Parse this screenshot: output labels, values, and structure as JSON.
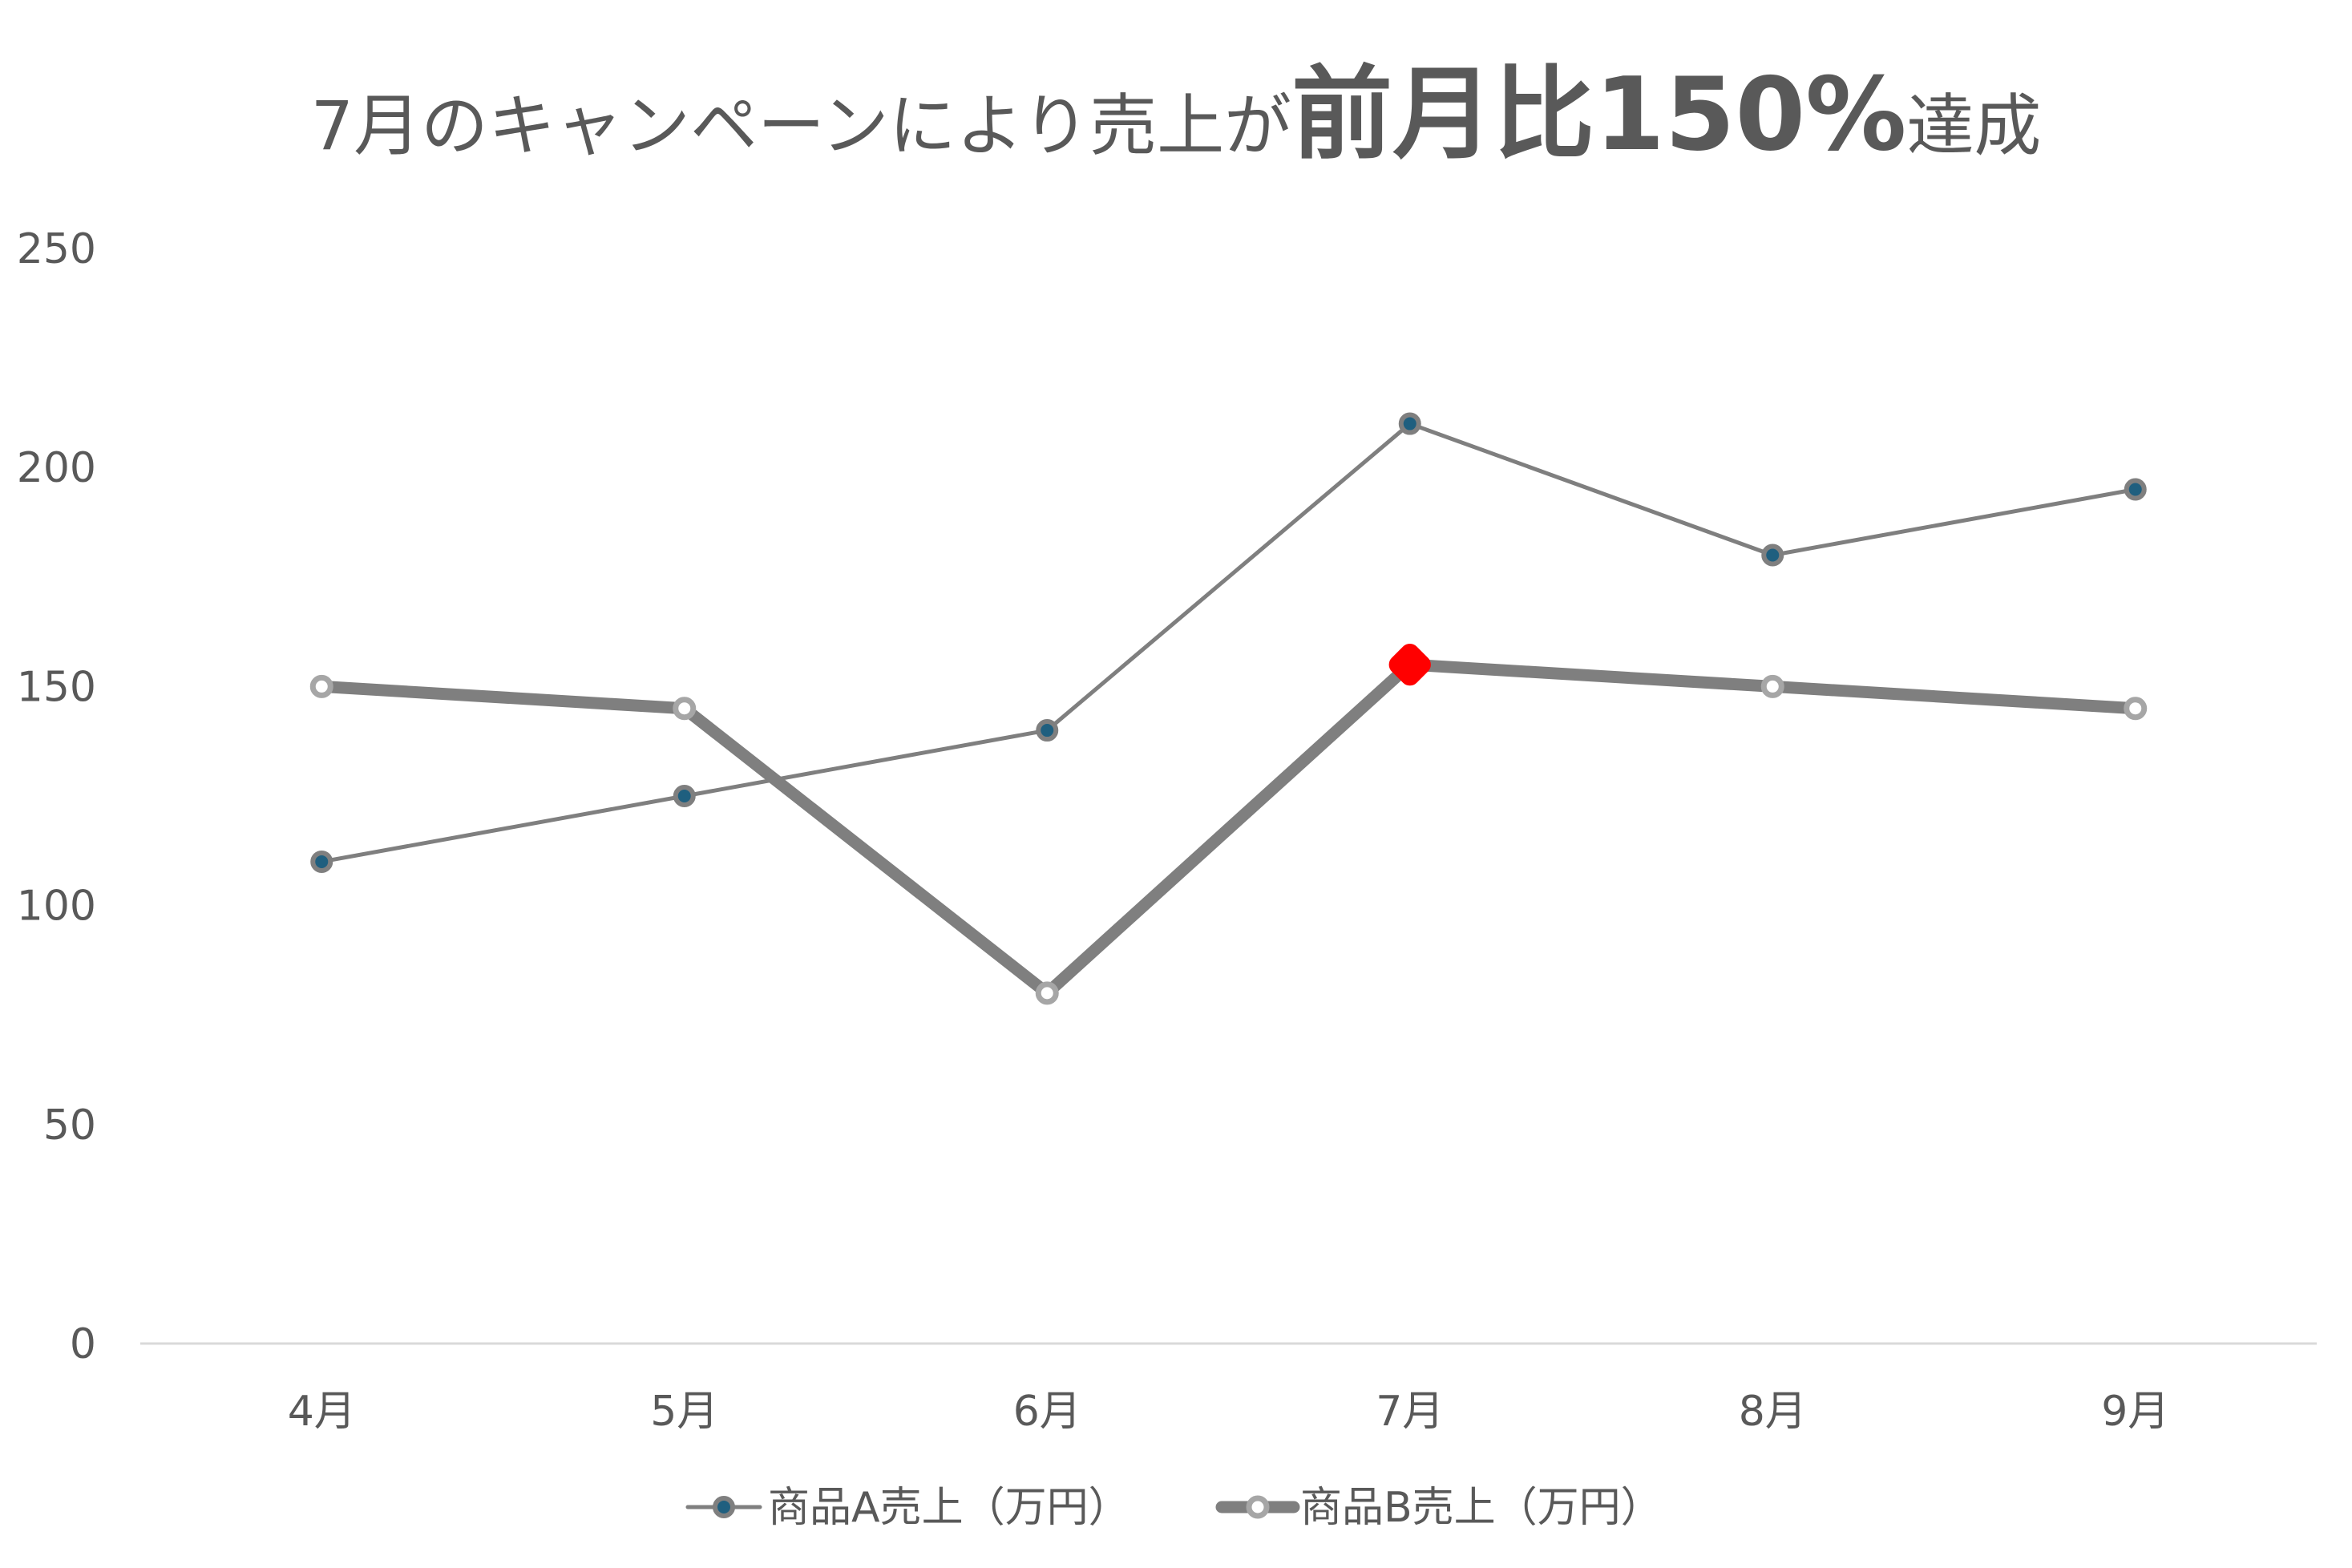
{
  "chart_data": {
    "type": "line",
    "title": {
      "prefix": "7月のキャンペーンにより売上が",
      "emphasis": "前月比150%",
      "suffix": "達成"
    },
    "categories": [
      "4月",
      "5月",
      "6月",
      "7月",
      "8月",
      "9月"
    ],
    "ylim": [
      0,
      250
    ],
    "yticks": [
      "0",
      "50",
      "100",
      "150",
      "200",
      "250"
    ],
    "grid": false,
    "legend": "bottom",
    "series": [
      {
        "name": "商品A売上（万円）",
        "values": [
          110,
          125,
          140,
          210,
          180,
          195
        ],
        "line_color": "#7f7f7f",
        "marker_fill": "#1f5f7f",
        "marker_stroke": "#7f7f7f"
      },
      {
        "name": "商品B売上（万円）",
        "values": [
          150,
          145,
          80,
          155,
          150,
          145
        ],
        "line_color": "#7f7f7f",
        "marker_fill": "#ffffff",
        "marker_stroke": "#a6a6a6",
        "highlight": {
          "category": "7月",
          "color": "#ff0000"
        }
      }
    ],
    "colors": {
      "text": "#595959",
      "axis": "#d9d9d9"
    }
  }
}
